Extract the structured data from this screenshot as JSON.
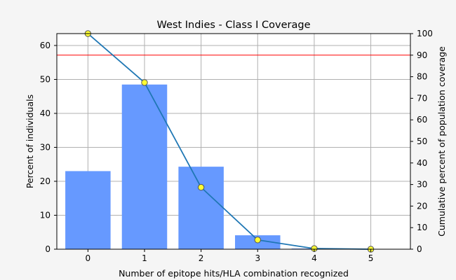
{
  "chart_data": {
    "type": "bar",
    "title": "West Indies - Class I Coverage",
    "xlabel": "Number of epitope hits/HLA combination recognized",
    "ylabel": "Percent of individuals",
    "y2label": "Cumulative percent of population coverage",
    "categories": [
      "0",
      "1",
      "2",
      "3",
      "4",
      "5"
    ],
    "x": [
      0,
      1,
      2,
      3,
      4,
      5
    ],
    "xlim": [
      -0.55,
      5.7
    ],
    "ylim": [
      0,
      63.5
    ],
    "y2lim": [
      0,
      100
    ],
    "yticks": [
      0,
      10,
      20,
      30,
      40,
      50,
      60
    ],
    "y2ticks": [
      0,
      10,
      20,
      30,
      40,
      50,
      60,
      70,
      80,
      90,
      100
    ],
    "grid": true,
    "series": [
      {
        "kind": "bar",
        "axis": "left",
        "values": [
          23.0,
          48.5,
          24.3,
          4.1,
          0.2,
          0.0
        ],
        "color": "#6699ff"
      },
      {
        "kind": "line",
        "axis": "right",
        "values": [
          100.0,
          77.3,
          28.7,
          4.3,
          0.3,
          0.0
        ],
        "color": "#1f77b4",
        "marker_color": "#ffff33"
      }
    ],
    "reference_line": {
      "axis": "right",
      "value": 90,
      "color": "#ff0000"
    }
  }
}
